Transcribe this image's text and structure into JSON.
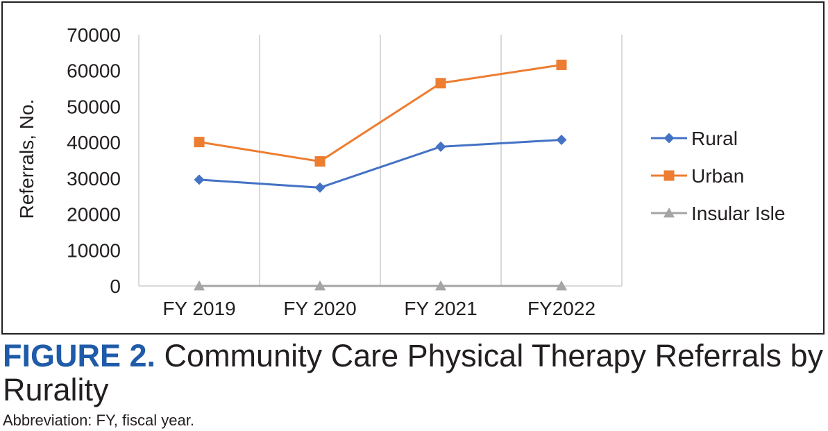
{
  "chart_data": {
    "type": "line",
    "categories": [
      "FY 2019",
      "FY 2020",
      "FY 2021",
      "FY2022"
    ],
    "ylabel": "Referrals, No.",
    "ylim": [
      0,
      70000
    ],
    "yticks": [
      "0",
      "10000",
      "20000",
      "30000",
      "40000",
      "50000",
      "60000",
      "70000"
    ],
    "grid": "vertical",
    "legend_position": "right",
    "series": [
      {
        "name": "Rural",
        "values": [
          29600,
          27400,
          38800,
          40700
        ],
        "color": "#4472c4",
        "marker": "diamond"
      },
      {
        "name": "Urban",
        "values": [
          40100,
          34700,
          56500,
          61600
        ],
        "color": "#ed7d31",
        "marker": "square"
      },
      {
        "name": "Insular Isle",
        "values": [
          0,
          0,
          0,
          0
        ],
        "color": "#a5a5a5",
        "marker": "triangle"
      }
    ]
  },
  "caption": {
    "label": "FIGURE 2.",
    "text": " Community Care Physical Therapy Referrals by Rurality"
  },
  "abbreviation": "Abbreviation: FY, fiscal year."
}
